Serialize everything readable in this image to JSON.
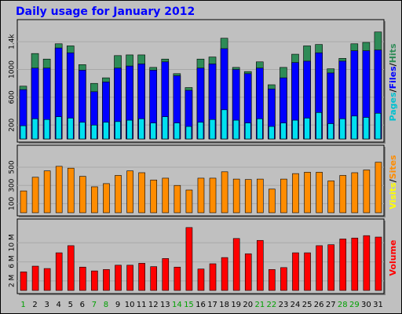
{
  "chart_data": [
    {
      "type": "bar",
      "title": "Daily usage for January 2012",
      "categories": [
        "1",
        "2",
        "3",
        "4",
        "5",
        "6",
        "7",
        "8",
        "9",
        "10",
        "11",
        "12",
        "13",
        "14",
        "15",
        "16",
        "17",
        "18",
        "19",
        "20",
        "21",
        "22",
        "23",
        "24",
        "25",
        "26",
        "27",
        "28",
        "29",
        "30",
        "31"
      ],
      "weekend_categories": [
        "1",
        "7",
        "8",
        "14",
        "15",
        "21",
        "22",
        "28",
        "29"
      ],
      "ylim": [
        0,
        1650
      ],
      "y_tick_labels": [
        "200",
        "600",
        "1000",
        "1.4k"
      ],
      "y_tick_values": [
        200,
        600,
        1000,
        1400
      ],
      "legend_parts": [
        {
          "text": "Pages",
          "color": "#00c0d0"
        },
        {
          "text": "/",
          "color": "#000000"
        },
        {
          "text": "Files",
          "color": "#0000ff"
        },
        {
          "text": "/",
          "color": "#000000"
        },
        {
          "text": "Hits",
          "color": "#2e8b57"
        }
      ],
      "series": [
        {
          "name": "Hits",
          "color": "#2e8b57",
          "values": [
            760,
            1230,
            1150,
            1370,
            1340,
            1070,
            800,
            880,
            1200,
            1210,
            1210,
            1030,
            1150,
            940,
            740,
            1150,
            1180,
            1450,
            1030,
            970,
            1110,
            780,
            1030,
            1220,
            1340,
            1360,
            1010,
            1160,
            1370,
            1390,
            1540
          ]
        },
        {
          "name": "Files",
          "color": "#0000ff",
          "values": [
            710,
            1020,
            1020,
            1310,
            1240,
            990,
            680,
            820,
            1020,
            1050,
            1080,
            990,
            1110,
            910,
            700,
            1020,
            1080,
            1300,
            1000,
            940,
            1020,
            720,
            880,
            1100,
            1120,
            1240,
            950,
            1120,
            1270,
            1270,
            1280
          ]
        },
        {
          "name": "Pages",
          "color": "#00e0f0",
          "values": [
            190,
            290,
            280,
            320,
            300,
            240,
            200,
            240,
            250,
            270,
            290,
            230,
            320,
            230,
            180,
            240,
            280,
            420,
            270,
            230,
            290,
            180,
            230,
            270,
            300,
            380,
            220,
            290,
            330,
            310,
            370
          ]
        }
      ]
    },
    {
      "type": "bar",
      "ylim": [
        0,
        690
      ],
      "y_tick_labels": [
        "100",
        "300",
        "500"
      ],
      "y_tick_values": [
        100,
        300,
        500
      ],
      "legend_parts": [
        {
          "text": "Visits",
          "color": "#ffff00"
        },
        {
          "text": "/",
          "color": "#000000"
        },
        {
          "text": "Sites",
          "color": "#ff8c00"
        }
      ],
      "series": [
        {
          "name": "Sites",
          "color": "#ff8c00",
          "values": [
            240,
            390,
            460,
            510,
            490,
            400,
            285,
            320,
            410,
            460,
            440,
            360,
            380,
            300,
            250,
            380,
            380,
            450,
            370,
            365,
            370,
            260,
            370,
            430,
            445,
            445,
            350,
            410,
            440,
            470,
            555
          ]
        }
      ]
    },
    {
      "type": "bar",
      "ylim": [
        0,
        14000000
      ],
      "y_tick_labels": [
        "2 M",
        "6 M",
        "10 M"
      ],
      "y_tick_values": [
        2000000,
        6000000,
        10000000
      ],
      "legend_parts": [
        {
          "text": "Volume",
          "color": "#ff0000"
        }
      ],
      "series": [
        {
          "name": "Volume",
          "color": "#ff0000",
          "values": [
            3900000,
            5100000,
            4600000,
            7900000,
            9400000,
            4900000,
            4100000,
            4400000,
            5300000,
            5300000,
            5700000,
            5000000,
            6700000,
            4900000,
            13200000,
            4500000,
            5600000,
            6900000,
            10900000,
            7700000,
            10500000,
            4400000,
            4800000,
            7900000,
            7900000,
            9400000,
            9600000,
            10800000,
            11000000,
            11500000,
            11200000
          ]
        }
      ]
    }
  ]
}
